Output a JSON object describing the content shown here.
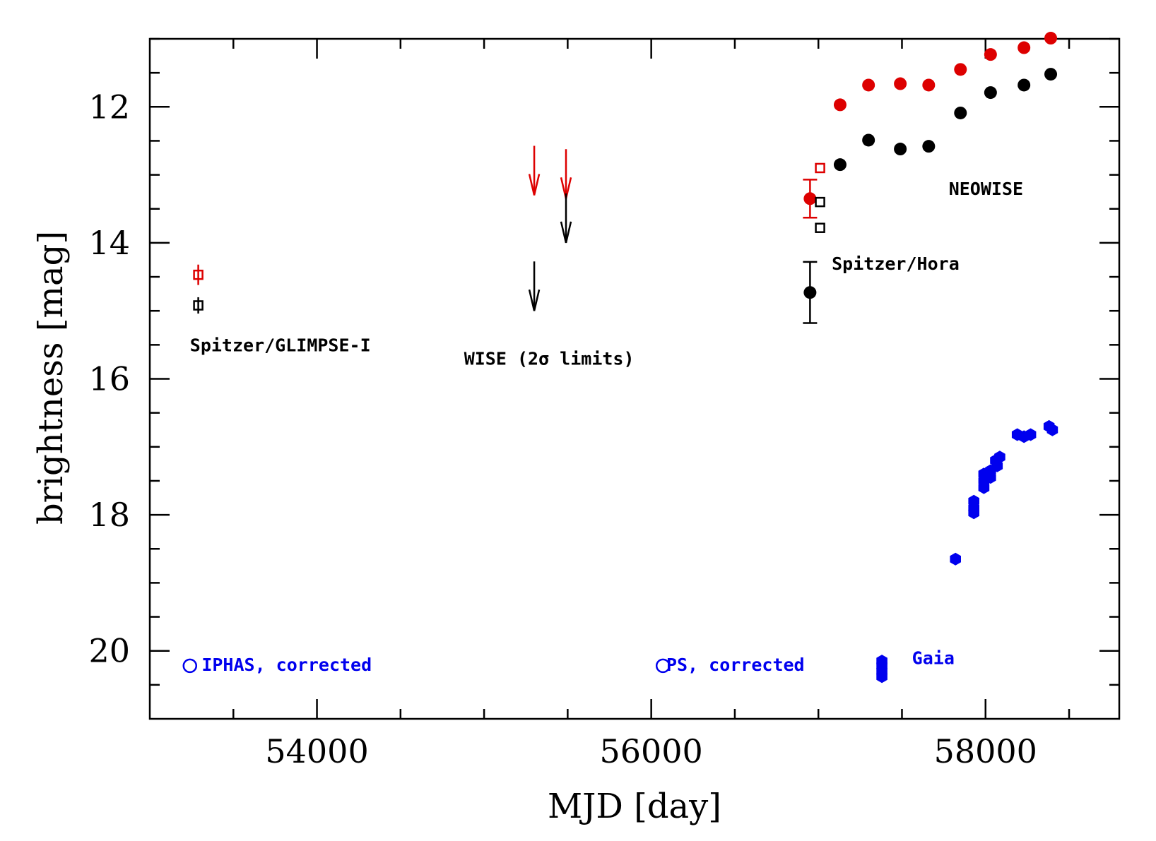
{
  "chart_data": {
    "type": "scatter",
    "xlabel": "MJD [day]",
    "ylabel": "brightness [mag]",
    "xlim": [
      53000,
      58800
    ],
    "ylim": [
      11.0,
      21.0
    ],
    "y_inverted": true,
    "x_ticks": [
      54000,
      56000,
      58000
    ],
    "y_ticks": [
      12,
      14,
      16,
      18,
      20
    ],
    "colors": {
      "red": "#dd0000",
      "black": "#000000",
      "blue": "#0000ee"
    },
    "annotations": [
      {
        "text": "Spitzer/GLIMPSE-I",
        "x": 53240,
        "y": 15.5,
        "color": "#000000"
      },
      {
        "text": "WISE (2σ limits)",
        "x": 54880,
        "y": 15.7,
        "color": "#000000"
      },
      {
        "text": "NEOWISE",
        "x": 57780,
        "y": 13.2,
        "color": "#000000"
      },
      {
        "text": "Spitzer/Hora",
        "x": 57080,
        "y": 14.3,
        "color": "#000000"
      },
      {
        "text": "IPHAS, corrected",
        "x": 53310,
        "y": 20.2,
        "color": "#0000ee"
      },
      {
        "text": "PS, corrected",
        "x": 56090,
        "y": 20.2,
        "color": "#0000ee"
      },
      {
        "text": "Gaia",
        "x": 57560,
        "y": 20.1,
        "color": "#0000ee"
      }
    ],
    "series": [
      {
        "marker": "filled-circle",
        "color": "#dd0000",
        "points": [
          {
            "x": 56950,
            "y": 13.35,
            "yerr": 0.28
          },
          {
            "x": 57130,
            "y": 11.97
          },
          {
            "x": 57300,
            "y": 11.68
          },
          {
            "x": 57490,
            "y": 11.66
          },
          {
            "x": 57660,
            "y": 11.68
          },
          {
            "x": 57850,
            "y": 11.45
          },
          {
            "x": 58030,
            "y": 11.23
          },
          {
            "x": 58230,
            "y": 11.13
          },
          {
            "x": 58390,
            "y": 10.99
          }
        ]
      },
      {
        "marker": "filled-circle",
        "color": "#000000",
        "points": [
          {
            "x": 56950,
            "y": 14.73,
            "yerr": 0.45
          },
          {
            "x": 57130,
            "y": 12.85
          },
          {
            "x": 57300,
            "y": 12.49
          },
          {
            "x": 57490,
            "y": 12.62
          },
          {
            "x": 57660,
            "y": 12.58
          },
          {
            "x": 57850,
            "y": 12.09
          },
          {
            "x": 58030,
            "y": 11.79
          },
          {
            "x": 58230,
            "y": 11.68
          },
          {
            "x": 58390,
            "y": 11.52
          }
        ]
      },
      {
        "marker": "open-square",
        "color": "#dd0000",
        "points": [
          {
            "x": 53290,
            "y": 14.47,
            "yerr": 0.15
          },
          {
            "x": 57010,
            "y": 12.9
          }
        ]
      },
      {
        "marker": "open-square",
        "color": "#000000",
        "points": [
          {
            "x": 53290,
            "y": 14.92,
            "yerr": 0.12
          },
          {
            "x": 57010,
            "y": 13.4
          },
          {
            "x": 57010,
            "y": 13.78
          }
        ]
      },
      {
        "marker": "upper-limit-arrow",
        "color": "#dd0000",
        "points": [
          {
            "x": 55300,
            "y": 13.3
          },
          {
            "x": 55490,
            "y": 13.35
          }
        ]
      },
      {
        "marker": "upper-limit-arrow",
        "color": "#000000",
        "points": [
          {
            "x": 55300,
            "y": 15.0
          },
          {
            "x": 55490,
            "y": 14.0
          }
        ]
      },
      {
        "marker": "open-circle",
        "color": "#0000ee",
        "points": [
          {
            "x": 53240,
            "y": 20.22
          },
          {
            "x": 56070,
            "y": 20.22
          }
        ]
      },
      {
        "marker": "filled-hexagon",
        "color": "#0000ee",
        "points": [
          {
            "x": 57380,
            "y": 20.15
          },
          {
            "x": 57380,
            "y": 20.22
          },
          {
            "x": 57380,
            "y": 20.3
          },
          {
            "x": 57380,
            "y": 20.38
          },
          {
            "x": 57820,
            "y": 18.65
          },
          {
            "x": 57930,
            "y": 17.8
          },
          {
            "x": 57930,
            "y": 17.9
          },
          {
            "x": 57930,
            "y": 17.97
          },
          {
            "x": 57990,
            "y": 17.4
          },
          {
            "x": 57990,
            "y": 17.5
          },
          {
            "x": 57990,
            "y": 17.6
          },
          {
            "x": 58030,
            "y": 17.35
          },
          {
            "x": 58030,
            "y": 17.45
          },
          {
            "x": 58060,
            "y": 17.2
          },
          {
            "x": 58070,
            "y": 17.28
          },
          {
            "x": 58085,
            "y": 17.15
          },
          {
            "x": 58190,
            "y": 16.82
          },
          {
            "x": 58230,
            "y": 16.85
          },
          {
            "x": 58270,
            "y": 16.82
          },
          {
            "x": 58380,
            "y": 16.7
          },
          {
            "x": 58400,
            "y": 16.75
          }
        ]
      }
    ]
  }
}
